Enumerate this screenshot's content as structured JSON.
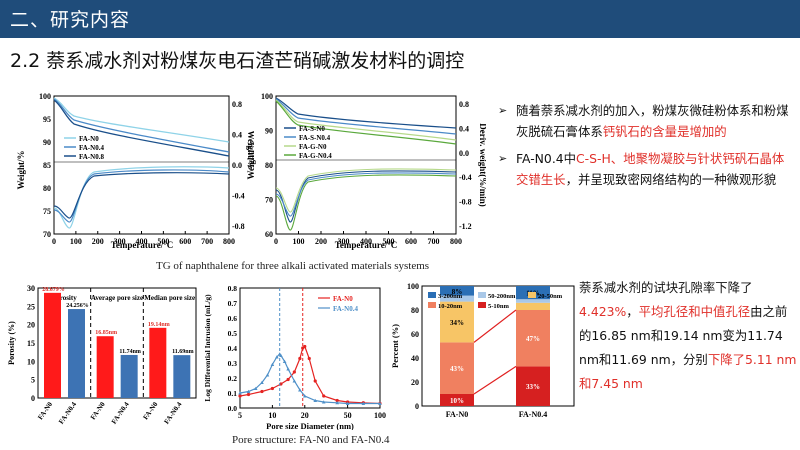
{
  "header": {
    "title": "二、研究内容"
  },
  "slide": {
    "title": "2.2 萘系减水剂对粉煤灰电石渣芒硝碱激发材料的调控"
  },
  "tg1": {
    "ylabel_left": "Weight/%",
    "ylabel_right": "Weight/%",
    "xlabel": "Temperature/°C",
    "xticks": [
      "0",
      "100",
      "200",
      "300",
      "400",
      "500",
      "600",
      "700",
      "800"
    ],
    "yticks_left": [
      "70",
      "75",
      "80",
      "85",
      "90",
      "95",
      "100"
    ],
    "yticks_right": [
      "0.8",
      "0.4",
      "0.0",
      "-0.4",
      "-0.8"
    ],
    "legend": [
      "FA-N0",
      "FA-N0.4",
      "FA-N0.8"
    ]
  },
  "tg2": {
    "ylabel_left": "Weight/%",
    "ylabel_right": "Deriv. weight(%/min)",
    "xlabel": "Temperature/°C",
    "xticks": [
      "0",
      "100",
      "200",
      "300",
      "400",
      "500",
      "600",
      "700",
      "800"
    ],
    "yticks_left": [
      "60",
      "70",
      "80",
      "90",
      "100"
    ],
    "yticks_right": [
      "0.8",
      "0.4",
      "0.0",
      "-0.4",
      "-0.8",
      "-1.2"
    ],
    "legend": [
      "FA-S-N0",
      "FA-S-N0.4",
      "FA-G-N0",
      "FA-G-N0.4"
    ]
  },
  "tg_caption": "TG of naphthalene for three alkali activated materials systems",
  "bullets": [
    {
      "parts": [
        {
          "t": "随着萘系减水剂的加入，粉煤灰微硅粉体系和粉煤灰脱硫石膏体系",
          "red": false
        },
        {
          "t": "钙钒石的含量是增加的",
          "red": true
        }
      ]
    },
    {
      "parts": [
        {
          "t": "FA-N0.4中",
          "red": false
        },
        {
          "t": "C-S-H、地聚物凝胶与针状钙矾石晶体交错生长",
          "red": true
        },
        {
          "t": "，并呈现致密网络结构的一种微观形貌",
          "red": false
        }
      ]
    }
  ],
  "bar_chart": {
    "ylabel": "Porosity (%)",
    "yticks": [
      "0",
      "5",
      "10",
      "15",
      "20",
      "25",
      "30"
    ],
    "ylim": [
      0,
      30
    ],
    "groups": [
      {
        "label": "Porosity",
        "values": [
          28.679,
          24.256
        ],
        "value_labels": [
          "28.679%",
          "24.256%"
        ],
        "categories": [
          "FA-N0",
          "FA-N0.4"
        ]
      },
      {
        "label": "Average pore size",
        "values": [
          16.85,
          11.74
        ],
        "value_labels": [
          "16.85nm",
          "11.74nm"
        ],
        "categories": [
          "FA-N0",
          "FA-N0.4"
        ]
      },
      {
        "label": "Median pore size",
        "values": [
          19.14,
          11.69
        ],
        "value_labels": [
          "19.14nm",
          "11.69nm"
        ],
        "categories": [
          "FA-N0",
          "FA-N0.4"
        ]
      }
    ],
    "colors": [
      "#ff1a1a",
      "#3d73b4"
    ]
  },
  "line_chart": {
    "ylabel": "Log Differential Intrusion (mL/g)",
    "xlabel": "Pore size Diameter (nm)",
    "xticks": [
      "5",
      "10",
      "20",
      "50",
      "100"
    ],
    "yticks": [
      "0.0",
      "0.1",
      "0.2",
      "0.3",
      "0.4",
      "0.5",
      "0.6",
      "0.7",
      "0.8"
    ],
    "ylim": [
      0,
      0.8
    ],
    "series": [
      {
        "name": "FA-N0",
        "color": "#e52321",
        "peak_x": 19.14,
        "x": [
          5,
          6,
          8,
          10,
          12,
          14,
          16,
          18,
          19.14,
          20,
          22,
          25,
          30,
          40,
          50,
          70,
          100
        ],
        "y": [
          0.08,
          0.09,
          0.11,
          0.13,
          0.16,
          0.19,
          0.24,
          0.33,
          0.4,
          0.41,
          0.33,
          0.18,
          0.08,
          0.05,
          0.04,
          0.035,
          0.03
        ]
      },
      {
        "name": "FA-N0.4",
        "color": "#4f90c8",
        "peak_x": 11.69,
        "x": [
          5,
          6,
          7,
          8,
          9,
          10,
          11,
          11.69,
          12,
          13,
          14,
          16,
          18,
          20,
          25,
          30,
          40,
          50,
          70,
          100
        ],
        "y": [
          0.1,
          0.11,
          0.13,
          0.17,
          0.22,
          0.29,
          0.34,
          0.36,
          0.35,
          0.31,
          0.26,
          0.18,
          0.12,
          0.08,
          0.05,
          0.04,
          0.035,
          0.03,
          0.03,
          0.03
        ]
      }
    ]
  },
  "pore_caption": "Pore structure: FA-N0 and FA-N0.4",
  "stacked_chart": {
    "ylabel": "Percent (%)",
    "yticks": [
      "0",
      "20",
      "40",
      "60",
      "80",
      "100"
    ],
    "legend": [
      {
        "label": "3-200nm",
        "color": "#2b6fb5"
      },
      {
        "label": "50-200nm",
        "color": "#a9c8e8"
      },
      {
        "label": "20-50nm",
        "color": "#f7c566"
      },
      {
        "label": "10-20nm",
        "color": "#f08060"
      },
      {
        "label": "5-10nm",
        "color": "#d62020"
      }
    ],
    "bars": [
      {
        "label": "FA-N0",
        "segments": [
          10,
          43,
          34,
          5,
          8
        ],
        "labels": [
          "10%",
          "43%",
          "34%",
          "",
          "8%"
        ]
      },
      {
        "label": "FA-N0.4",
        "segments": [
          33,
          47,
          6,
          3,
          11
        ],
        "labels": [
          "33%",
          "47%",
          "",
          "",
          "11%"
        ]
      }
    ]
  },
  "right_text": {
    "parts": [
      {
        "t": "萘系减水剂的试块孔隙率下降了",
        "red": false
      },
      {
        "t": "4.423%",
        "red": true
      },
      {
        "t": "，",
        "red": false
      },
      {
        "t": "平均孔径和中值孔径",
        "red": true
      },
      {
        "t": "由之前的16.85 nm和19.14 nm变为11.74 nm和11.69 nm，分别",
        "red": false
      },
      {
        "t": "下降了5.11 nm和7.45 nm",
        "red": true
      }
    ]
  }
}
